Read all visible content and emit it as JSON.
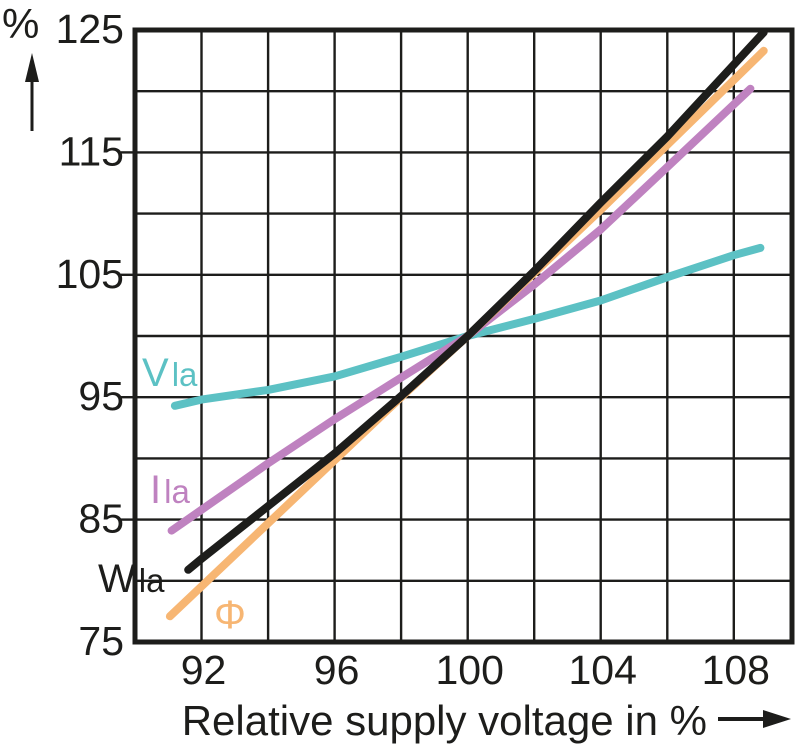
{
  "chart_data": {
    "type": "line",
    "title": "",
    "xlabel": "Relative supply voltage in %",
    "ylabel": "%",
    "ink": "#1d1d1b",
    "background": "#ffffff",
    "grid": true,
    "legend_position": "inline-labels",
    "xlim": [
      90,
      109.75
    ],
    "ylim": [
      75,
      125
    ],
    "x_ticks": [
      92,
      96,
      100,
      104,
      108
    ],
    "x_gridlines": [
      92,
      94,
      96,
      98,
      100,
      102,
      104,
      106,
      108
    ],
    "y_ticks": [
      75,
      85,
      95,
      105,
      115,
      125
    ],
    "y_gridlines": [
      80,
      85,
      90,
      95,
      100,
      105,
      110,
      115,
      120
    ],
    "y_tick_marks": [
      85,
      95,
      105,
      115
    ],
    "series": [
      {
        "id": "V_la",
        "label_main": "V",
        "label_sub": "la",
        "color": "#5cc1c4",
        "points": [
          [
            91.2,
            94.3
          ],
          [
            92,
            94.8
          ],
          [
            94,
            95.6
          ],
          [
            96,
            96.7
          ],
          [
            98,
            98.3
          ],
          [
            100,
            100
          ],
          [
            102,
            101.4
          ],
          [
            104,
            102.9
          ],
          [
            106,
            104.8
          ],
          [
            108,
            106.6
          ],
          [
            108.8,
            107.2
          ]
        ]
      },
      {
        "id": "I_la",
        "label_main": "I",
        "label_sub": "la",
        "color": "#bf82c0",
        "points": [
          [
            91.1,
            84.1
          ],
          [
            92,
            85.8
          ],
          [
            94,
            89.6
          ],
          [
            96,
            93.2
          ],
          [
            98,
            96.6
          ],
          [
            100,
            100
          ],
          [
            102,
            104.2
          ],
          [
            104,
            108.7
          ],
          [
            106,
            113.8
          ],
          [
            108.5,
            120.2
          ]
        ]
      },
      {
        "id": "phi",
        "label_main": "Φ",
        "label_sub": "",
        "color": "#f7b673",
        "points": [
          [
            91.05,
            77.1
          ],
          [
            94,
            84.7
          ],
          [
            98,
            95.0
          ],
          [
            100,
            100
          ],
          [
            104,
            110.3
          ],
          [
            108.9,
            123.3
          ]
        ]
      },
      {
        "id": "W_la",
        "label_main": "W",
        "label_sub": "la",
        "color": "#1d1d1b",
        "points": [
          [
            91.6,
            80.9
          ],
          [
            92,
            81.8
          ],
          [
            94,
            86.1
          ],
          [
            96,
            90.4
          ],
          [
            98,
            95.1
          ],
          [
            100,
            100
          ],
          [
            102,
            105.3
          ],
          [
            104,
            110.9
          ],
          [
            106,
            116.3
          ],
          [
            108.9,
            124.8
          ]
        ]
      }
    ]
  }
}
